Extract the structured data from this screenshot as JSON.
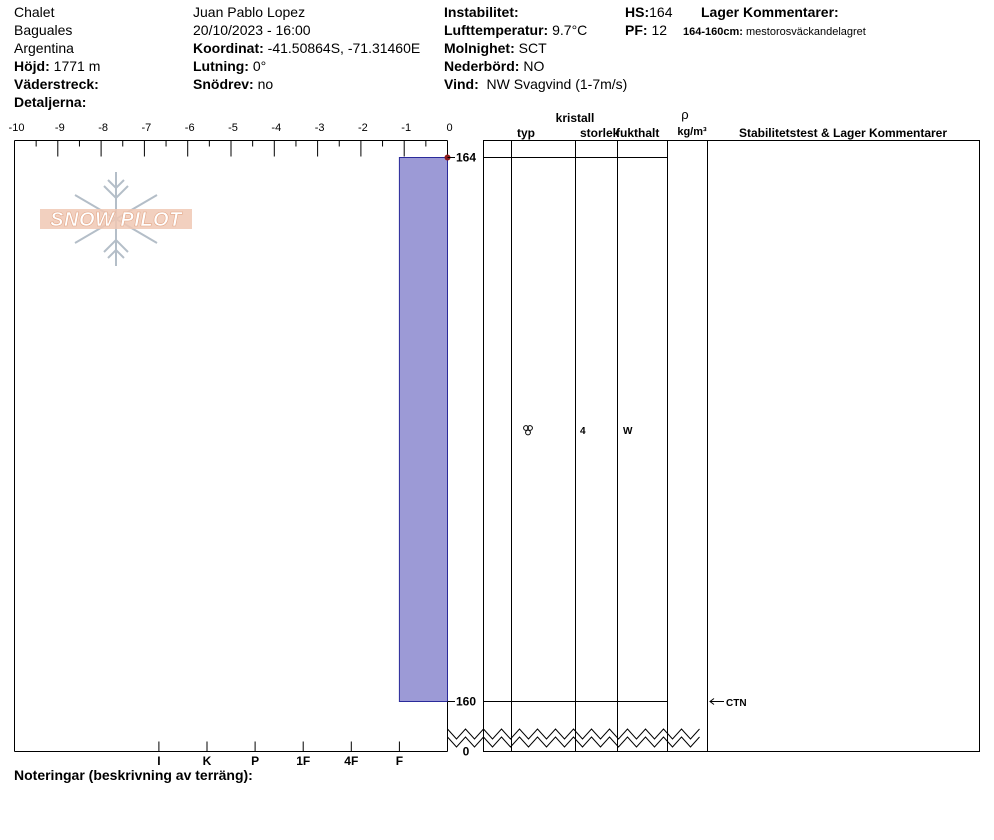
{
  "header": {
    "location": "Chalet",
    "region": "Baguales",
    "country": "Argentina",
    "elevation_label": "Höjd:",
    "elevation_value": "1771 m",
    "aspect_label": "Väderstreck:",
    "details_label": "Detaljerna:",
    "observer": "Juan Pablo  Lopez",
    "datetime": "20/10/2023 - 16:00",
    "coord_label": "Koordinat:",
    "coord_value": "-41.50864S, -71.31460E",
    "slope_label": "Lutning:",
    "slope_value": "0°",
    "drift_label": "Snödrev:",
    "drift_value": "no",
    "instability_label": "Instabilitet:",
    "airtemp_label": "Lufttemperatur:",
    "airtemp_value": "9.7°C",
    "cloud_label": "Molnighet:",
    "cloud_value": "SCT",
    "precip_label": "Nederbörd:",
    "precip_value": "NO",
    "wind_label": "Vind:",
    "wind_value": "NW Svagvind (1-7m/s)",
    "hs_label": "HS:",
    "hs_value": "164",
    "pf_label": "PF:",
    "pf_value": "12",
    "layer_comments_label": "Lager Kommentarer:",
    "layer_comment_range": "164-160cm:",
    "layer_comment_text": "mestorosväckandelagret"
  },
  "watermark": "SNOW PILOT",
  "table_headers": {
    "kristall": "kristall",
    "typ": "typ",
    "storlek": "storlek",
    "fukthalt": "fukthalt",
    "rho": "ρ",
    "density_unit": "kg/m³",
    "stability": "Stabilitetstest & Lager Kommentarer"
  },
  "layer_row": {
    "grain_type_icon": "rounded-grain-icon",
    "grain_size": "4",
    "wetness": "W"
  },
  "test_result": "CTN",
  "notes_label": "Noteringar (beskrivning av terräng):",
  "colors": {
    "layer_fill": "#9c9ad6",
    "layer_stroke": "#2a2a9a",
    "top_marker": "#8b1a1a",
    "watermark_fill": "#f0c8b4",
    "watermark_flake": "#b4bec8"
  },
  "chart_data": {
    "type": "bar",
    "title": "",
    "xlabel": "",
    "ylabel": "",
    "x_ticks": [
      "-10",
      "-9",
      "-8",
      "-7",
      "-6",
      "-5",
      "-4",
      "-3",
      "-2",
      "-1",
      "0"
    ],
    "hardness_ticks": [
      "I",
      "K",
      "P",
      "1F",
      "4F",
      "F"
    ],
    "xlim": [
      -10,
      0
    ],
    "ylim": [
      0,
      164
    ],
    "height_labels": [
      "164",
      "160",
      "0"
    ],
    "layers": [
      {
        "top": 164,
        "bottom": 160,
        "hardness": "F"
      }
    ],
    "grid": false
  }
}
